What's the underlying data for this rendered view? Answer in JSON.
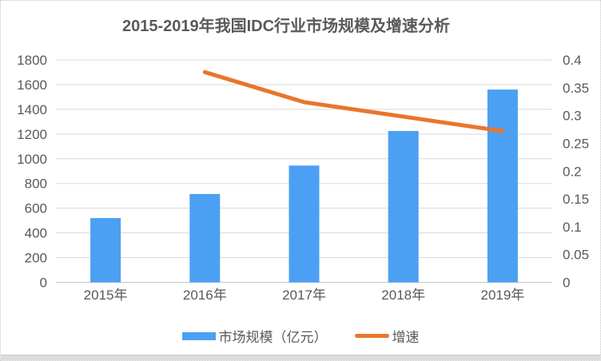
{
  "chart_data": {
    "type": "bar",
    "combo": true,
    "title": "2015-2019年我国IDC行业市场规模及增速分析",
    "categories": [
      "2015年",
      "2016年",
      "2017年",
      "2018年",
      "2019年"
    ],
    "series": [
      {
        "name": "市场规模（亿元）",
        "type": "bar",
        "axis": "left",
        "color": "#4ba0f3",
        "values": [
          520,
          715,
          945,
          1225,
          1560
        ]
      },
      {
        "name": "增速",
        "type": "line",
        "axis": "right",
        "color": "#e8762b",
        "values": [
          null,
          0.378,
          0.324,
          0.298,
          0.272
        ]
      }
    ],
    "axes": {
      "left": {
        "min": 0,
        "max": 1800,
        "ticks": [
          "0",
          "200",
          "400",
          "600",
          "800",
          "1000",
          "1200",
          "1400",
          "1600",
          "1800"
        ]
      },
      "right": {
        "min": 0,
        "max": 0.4,
        "ticks": [
          "0",
          "0.05",
          "0.1",
          "0.15",
          "0.2",
          "0.25",
          "0.3",
          "0.35",
          "0.4"
        ]
      }
    },
    "grid": true,
    "legend_position": "bottom"
  },
  "colors": {
    "text": "#595959",
    "gridline": "#dadada",
    "axis_line": "#c6c6c6",
    "bar": "#4ba0f3",
    "line": "#e8762b",
    "background": "#ffffff",
    "border": "#c4c4c4"
  }
}
